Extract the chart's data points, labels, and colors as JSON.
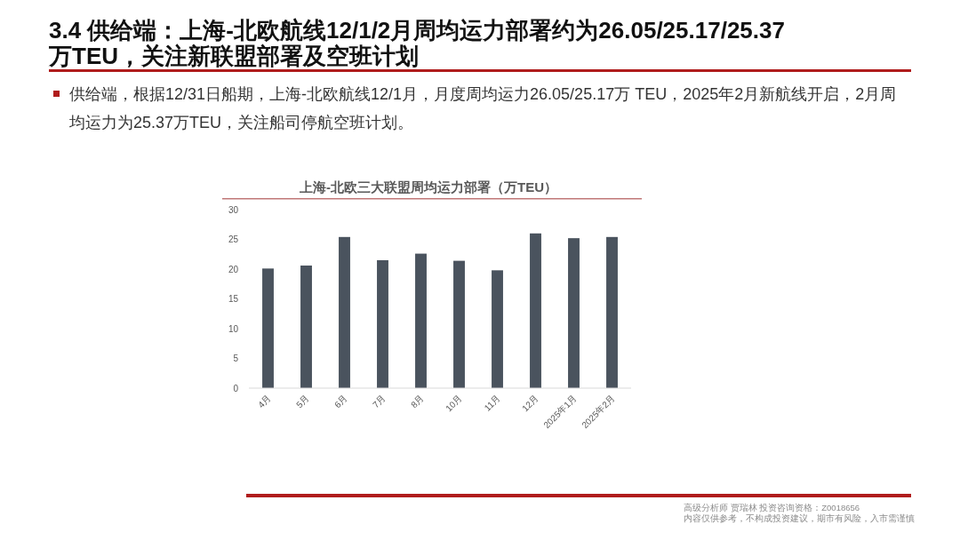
{
  "chart_data": {
    "type": "bar",
    "title": "3.4 供给端：上海-北欧航线12/1/2月周均运力部署约为26.05/25.17/25.37万TEU，关注新联盟部署及空班计划",
    "subtitle": "上海-北欧三大联盟周均运力部署（万TEU）",
    "categories": [
      "4月",
      "5月",
      "6月",
      "7月",
      "8月",
      "10月",
      "11月",
      "12月",
      "2025年1月",
      "2025年2月"
    ],
    "values": [
      20.1,
      20.6,
      25.4,
      21.5,
      22.6,
      21.4,
      19.8,
      26.0,
      25.2,
      25.4
    ],
    "color": "#4a535e",
    "ylim": [
      0,
      30
    ],
    "yticks": [
      0,
      5,
      10,
      15,
      20,
      25,
      30
    ],
    "annotations": [
      "供给端，根据12/31日船期，上海-北欧航线12/1月，月度周均运力26.05/25.17万 TEU，2025年2月新航线开启，2月周均运力为25.37万TEU，关注船司停航空班计划。",
      "高级分析师 贾瑞林 投资咨询资格：Z0018656",
      "内容仅供参考，不构成投资建议，期市有风险，入市需谨慎"
    ]
  }
}
